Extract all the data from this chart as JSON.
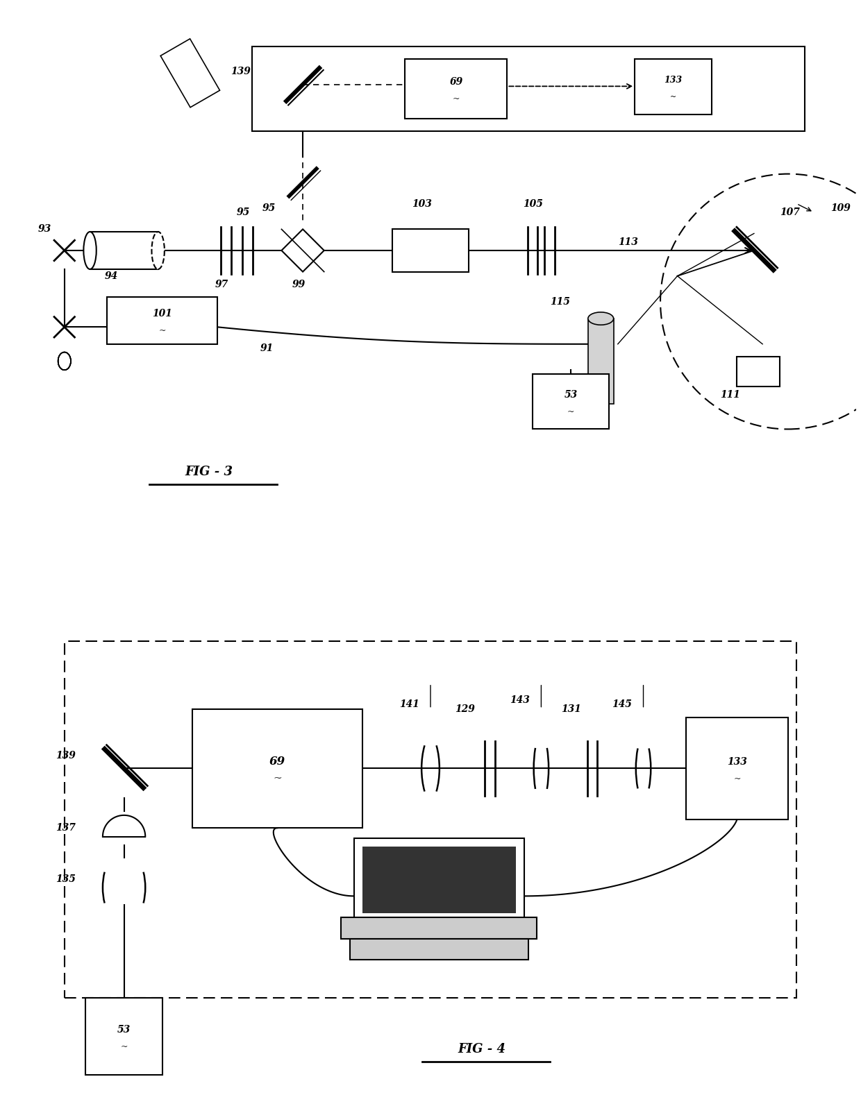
{
  "fig_width": 12.4,
  "fig_height": 15.91,
  "bg_color": "#ffffff"
}
